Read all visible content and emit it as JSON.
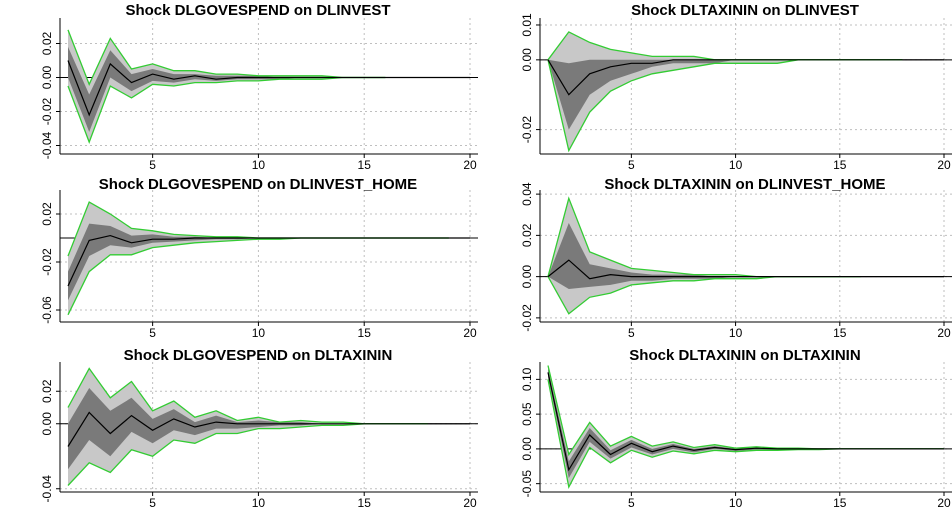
{
  "chart_data": [
    {
      "type": "area",
      "title": "Shock DLGOVESPEND on DLINVEST",
      "xlim": [
        1,
        20
      ],
      "ylim": [
        -0.045,
        0.035
      ],
      "x_ticks": [
        5,
        10,
        15,
        20
      ],
      "y_ticks": [
        -0.04,
        -0.02,
        0.0,
        0.02
      ],
      "y_tick_labels": [
        "-0.04",
        "-0.02",
        "0.00",
        "0.02"
      ],
      "grid": true,
      "x": [
        1,
        2,
        3,
        4,
        5,
        6,
        7,
        8,
        9,
        10,
        11,
        12,
        13,
        14,
        15,
        16,
        17,
        18,
        19,
        20
      ],
      "irf": [
        0.01,
        -0.022,
        0.008,
        -0.003,
        0.002,
        -0.001,
        0.001,
        -0.001,
        0.0,
        0.0,
        0,
        0,
        0,
        0,
        0,
        0,
        0,
        0,
        0,
        0
      ],
      "outer_lo": [
        -0.005,
        -0.038,
        -0.005,
        -0.012,
        -0.004,
        -0.005,
        -0.003,
        -0.003,
        -0.002,
        -0.002,
        -0.001,
        -0.001,
        -0.001,
        0,
        0,
        0,
        0,
        0,
        0,
        0
      ],
      "outer_hi": [
        0.028,
        -0.004,
        0.023,
        0.005,
        0.008,
        0.004,
        0.004,
        0.002,
        0.002,
        0.001,
        0.001,
        0.001,
        0.001,
        0,
        0,
        0,
        0,
        0,
        0,
        0
      ],
      "inner_lo": [
        0.0,
        -0.032,
        0.0,
        -0.008,
        -0.002,
        -0.003,
        -0.001,
        -0.002,
        -0.001,
        -0.001,
        -0.001,
        0,
        0,
        0,
        0,
        0,
        0,
        0,
        0,
        0
      ],
      "inner_hi": [
        0.018,
        -0.01,
        0.016,
        0.002,
        0.005,
        0.002,
        0.002,
        0.001,
        0.001,
        0.001,
        0,
        0,
        0,
        0,
        0,
        0,
        0,
        0,
        0,
        0
      ],
      "band_end": 16
    },
    {
      "type": "area",
      "title": "Shock DLTAXININ on DLINVEST",
      "xlim": [
        1,
        20
      ],
      "ylim": [
        -0.027,
        0.012
      ],
      "x_ticks": [
        5,
        10,
        15,
        20
      ],
      "y_ticks": [
        -0.02,
        0.0,
        0.01
      ],
      "y_tick_labels": [
        "-0.02",
        "0.00",
        "0.01"
      ],
      "grid": true,
      "x": [
        1,
        2,
        3,
        4,
        5,
        6,
        7,
        8,
        9,
        10,
        11,
        12,
        13,
        14,
        15,
        16,
        17,
        18,
        19,
        20
      ],
      "irf": [
        0.0,
        -0.01,
        -0.004,
        -0.002,
        -0.001,
        -0.001,
        0,
        0,
        0,
        0,
        0,
        0,
        0,
        0,
        0,
        0,
        0,
        0,
        0,
        0
      ],
      "outer_lo": [
        0.0,
        -0.026,
        -0.015,
        -0.009,
        -0.006,
        -0.004,
        -0.003,
        -0.002,
        -0.001,
        -0.001,
        -0.001,
        -0.001,
        0,
        0,
        0,
        0,
        0,
        0,
        0,
        0
      ],
      "outer_hi": [
        0.0,
        0.008,
        0.005,
        0.003,
        0.002,
        0.001,
        0.001,
        0.001,
        0.0,
        0,
        0,
        0,
        0,
        0,
        0,
        0,
        0,
        0,
        0,
        0
      ],
      "inner_lo": [
        0.0,
        -0.02,
        -0.01,
        -0.006,
        -0.004,
        -0.002,
        -0.001,
        -0.001,
        -0.001,
        0,
        0,
        0,
        0,
        0,
        0,
        0,
        0,
        0,
        0,
        0
      ],
      "inner_hi": [
        0.0,
        -0.001,
        0.0,
        0.0,
        0.0,
        0,
        0,
        0,
        0,
        0,
        0,
        0,
        0,
        0,
        0,
        0,
        0,
        0,
        0,
        0
      ],
      "band_end": 18
    },
    {
      "type": "area",
      "title": "Shock DLGOVESPEND on DLINVEST_HOME",
      "xlim": [
        1,
        20
      ],
      "ylim": [
        -0.07,
        0.04
      ],
      "x_ticks": [
        5,
        10,
        15,
        20
      ],
      "y_ticks": [
        -0.06,
        -0.02,
        0.02
      ],
      "y_tick_labels": [
        "-0.06",
        "-0.02",
        "0.02"
      ],
      "grid": true,
      "x": [
        1,
        2,
        3,
        4,
        5,
        6,
        7,
        8,
        9,
        10,
        11,
        12,
        13,
        14,
        15,
        16,
        17,
        18,
        19,
        20
      ],
      "irf": [
        -0.04,
        -0.002,
        0.002,
        -0.004,
        -0.001,
        -0.001,
        0,
        0,
        0,
        0,
        0,
        0,
        0,
        0,
        0,
        0,
        0,
        0,
        0,
        0
      ],
      "outer_lo": [
        -0.064,
        -0.028,
        -0.014,
        -0.014,
        -0.008,
        -0.006,
        -0.004,
        -0.003,
        -0.002,
        -0.001,
        -0.001,
        0,
        0,
        0,
        0,
        0,
        0,
        0,
        0,
        0
      ],
      "outer_hi": [
        -0.015,
        0.03,
        0.02,
        0.008,
        0.006,
        0.003,
        0.002,
        0.001,
        0.001,
        0,
        0,
        0,
        0,
        0,
        0,
        0,
        0,
        0,
        0,
        0
      ],
      "inner_lo": [
        -0.052,
        -0.015,
        -0.006,
        -0.008,
        -0.004,
        -0.003,
        -0.002,
        -0.001,
        -0.001,
        0,
        0,
        0,
        0,
        0,
        0,
        0,
        0,
        0,
        0,
        0
      ],
      "inner_hi": [
        -0.028,
        0.012,
        0.01,
        0.002,
        0.003,
        0.001,
        0.001,
        0,
        0,
        0,
        0,
        0,
        0,
        0,
        0,
        0,
        0,
        0,
        0,
        0
      ],
      "band_end": 19
    },
    {
      "type": "area",
      "title": "Shock DLTAXININ on DLINVEST_HOME",
      "xlim": [
        1,
        20
      ],
      "ylim": [
        -0.022,
        0.042
      ],
      "x_ticks": [
        5,
        10,
        15,
        20
      ],
      "y_ticks": [
        -0.02,
        0.0,
        0.02,
        0.04
      ],
      "y_tick_labels": [
        "-0.02",
        "0.00",
        "0.02",
        "0.04"
      ],
      "grid": true,
      "x": [
        1,
        2,
        3,
        4,
        5,
        6,
        7,
        8,
        9,
        10,
        11,
        12,
        13,
        14,
        15,
        16,
        17,
        18,
        19,
        20
      ],
      "irf": [
        0.0,
        0.008,
        -0.001,
        0.001,
        0.0,
        0.0,
        0,
        0,
        0,
        0,
        0,
        0,
        0,
        0,
        0,
        0,
        0,
        0,
        0,
        0
      ],
      "outer_lo": [
        0.0,
        -0.018,
        -0.01,
        -0.008,
        -0.004,
        -0.003,
        -0.002,
        -0.002,
        -0.001,
        -0.001,
        -0.001,
        0,
        0,
        0,
        0,
        0,
        0,
        0,
        0,
        0
      ],
      "outer_hi": [
        0.0,
        0.038,
        0.012,
        0.008,
        0.004,
        0.003,
        0.002,
        0.001,
        0.001,
        0.001,
        0,
        0,
        0,
        0,
        0,
        0,
        0,
        0,
        0,
        0
      ],
      "inner_lo": [
        0.0,
        -0.006,
        -0.005,
        -0.004,
        -0.002,
        -0.002,
        -0.001,
        -0.001,
        -0.001,
        0,
        0,
        0,
        0,
        0,
        0,
        0,
        0,
        0,
        0,
        0
      ],
      "inner_hi": [
        0.0,
        0.026,
        0.006,
        0.004,
        0.002,
        0.001,
        0.001,
        0.001,
        0,
        0,
        0,
        0,
        0,
        0,
        0,
        0,
        0,
        0,
        0,
        0
      ],
      "band_end": 16
    },
    {
      "type": "area",
      "title": "Shock DLGOVESPEND on DLTAXININ",
      "xlim": [
        1,
        20
      ],
      "ylim": [
        -0.042,
        0.038
      ],
      "x_ticks": [
        5,
        10,
        15,
        20
      ],
      "y_ticks": [
        -0.04,
        0.0,
        0.02
      ],
      "y_tick_labels": [
        "-0.04",
        "0.00",
        "0.02"
      ],
      "grid": true,
      "x": [
        1,
        2,
        3,
        4,
        5,
        6,
        7,
        8,
        9,
        10,
        11,
        12,
        13,
        14,
        15,
        16,
        17,
        18,
        19,
        20
      ],
      "irf": [
        -0.014,
        0.007,
        -0.006,
        0.005,
        -0.004,
        0.003,
        -0.002,
        0.001,
        0.0,
        0.0,
        0,
        0,
        0,
        0,
        0,
        0,
        0,
        0,
        0,
        0
      ],
      "outer_lo": [
        -0.038,
        -0.024,
        -0.03,
        -0.016,
        -0.02,
        -0.01,
        -0.012,
        -0.006,
        -0.006,
        -0.003,
        -0.003,
        -0.002,
        -0.001,
        -0.001,
        0,
        0,
        0,
        0,
        0,
        0
      ],
      "outer_hi": [
        0.01,
        0.034,
        0.016,
        0.026,
        0.008,
        0.014,
        0.004,
        0.008,
        0.002,
        0.004,
        0.001,
        0.002,
        0.001,
        0.001,
        0,
        0,
        0,
        0,
        0,
        0
      ],
      "inner_lo": [
        -0.028,
        -0.01,
        -0.02,
        -0.005,
        -0.012,
        -0.004,
        -0.007,
        -0.003,
        -0.003,
        -0.002,
        -0.001,
        -0.001,
        0,
        0,
        0,
        0,
        0,
        0,
        0,
        0
      ],
      "inner_hi": [
        0.0,
        0.022,
        0.008,
        0.016,
        0.003,
        0.009,
        0.001,
        0.005,
        0.001,
        0.002,
        0.001,
        0.001,
        0,
        0,
        0,
        0,
        0,
        0,
        0,
        0
      ],
      "band_end": 18
    },
    {
      "type": "area",
      "title": "Shock DLTAXININ on DLTAXININ",
      "xlim": [
        1,
        20
      ],
      "ylim": [
        -0.062,
        0.125
      ],
      "x_ticks": [
        5,
        10,
        15,
        20
      ],
      "y_ticks": [
        -0.05,
        0.0,
        0.05,
        0.1
      ],
      "y_tick_labels": [
        "-0.05",
        "0.00",
        "0.05",
        "0.10"
      ],
      "grid": true,
      "x": [
        1,
        2,
        3,
        4,
        5,
        6,
        7,
        8,
        9,
        10,
        11,
        12,
        13,
        14,
        15,
        16,
        17,
        18,
        19,
        20
      ],
      "irf": [
        0.11,
        -0.03,
        0.02,
        -0.008,
        0.008,
        -0.004,
        0.004,
        -0.002,
        0.002,
        -0.001,
        0.001,
        0,
        0,
        0,
        0,
        0,
        0,
        0,
        0,
        0
      ],
      "outer_lo": [
        0.1,
        -0.055,
        0.002,
        -0.02,
        -0.002,
        -0.012,
        -0.003,
        -0.007,
        -0.002,
        -0.004,
        -0.002,
        -0.002,
        -0.001,
        -0.001,
        0,
        0,
        0,
        0,
        0,
        0
      ],
      "outer_hi": [
        0.12,
        -0.008,
        0.038,
        0.004,
        0.018,
        0.004,
        0.01,
        0.002,
        0.006,
        0.001,
        0.003,
        0.001,
        0.001,
        0,
        0,
        0,
        0,
        0,
        0,
        0
      ],
      "inner_lo": [
        0.104,
        -0.042,
        0.01,
        -0.014,
        0.002,
        -0.008,
        0.0,
        -0.005,
        0.0,
        -0.003,
        -0.001,
        -0.001,
        0,
        0,
        0,
        0,
        0,
        0,
        0,
        0
      ],
      "inner_hi": [
        0.116,
        -0.018,
        0.03,
        -0.002,
        0.013,
        0.0,
        0.007,
        0.0,
        0.004,
        0.0,
        0.002,
        0,
        0,
        0,
        0,
        0,
        0,
        0,
        0,
        0
      ],
      "band_end": 20
    }
  ],
  "colors": {
    "outer_band": "#c8c8c8",
    "inner_band": "#7a7a7a",
    "band_edge": "#33cc33",
    "irf_line": "#000000",
    "grid": "#bfbfbf"
  }
}
